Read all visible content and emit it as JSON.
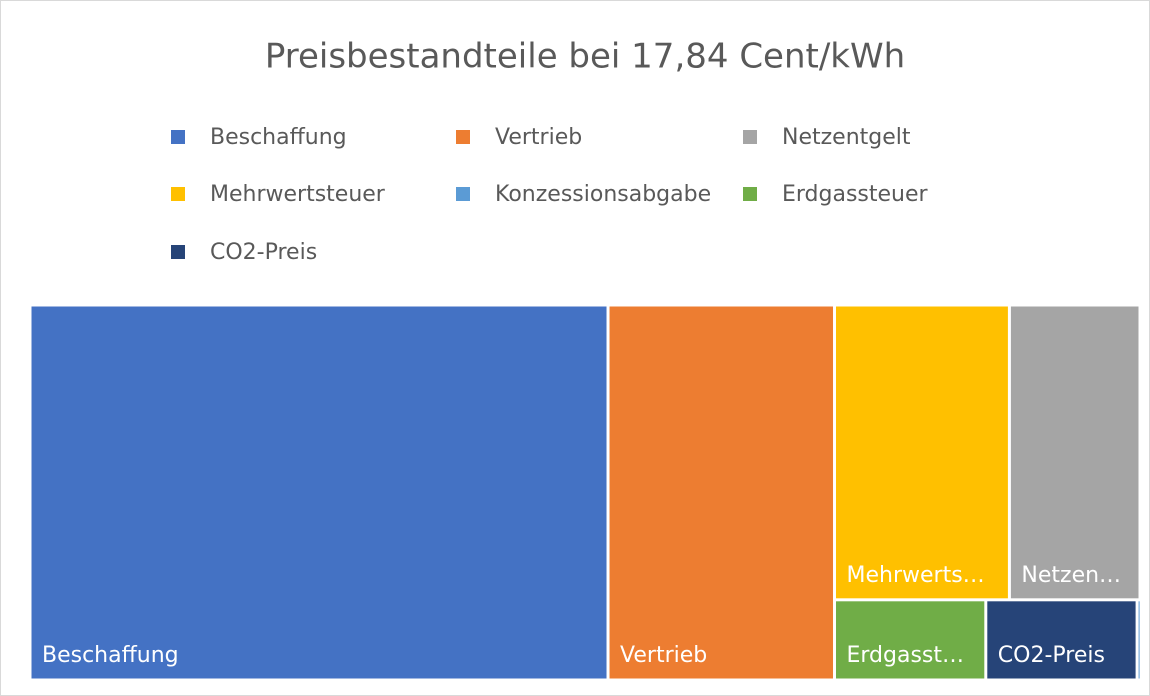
{
  "chart_data": {
    "type": "treemap",
    "title": "Preisbestandteile bei 17,84 Cent/kWh",
    "categories": [
      "Beschaffung",
      "Vertrieb",
      "Netzentgelt",
      "Mehrwertsteuer",
      "Konzessionsabgabe",
      "Erdgassteuer",
      "CO2-Preis"
    ],
    "values": [
      9.29,
      3.64,
      1.65,
      2.21,
      0.01,
      0.52,
      0.52
    ],
    "colors": [
      "#4472c4",
      "#ed7d31",
      "#a5a5a5",
      "#ffc000",
      "#5b9bd5",
      "#70ad47",
      "#264478"
    ],
    "tile_labels": [
      "Beschaffung",
      "Vertrieb",
      "Netzen…",
      "Mehrwerts…",
      null,
      "Erdgasst…",
      "CO2-Preis"
    ]
  }
}
